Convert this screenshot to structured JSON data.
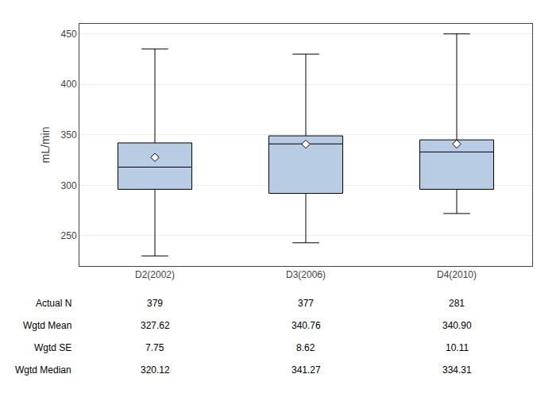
{
  "chart_data": {
    "type": "box",
    "categories": [
      "D2(2002)",
      "D3(2006)",
      "D4(2010)"
    ],
    "boxes": [
      {
        "whisker_low": 230,
        "q1": 296,
        "median": 318,
        "q3": 342,
        "whisker_high": 435,
        "mean": 327.62
      },
      {
        "whisker_low": 243,
        "q1": 292,
        "median": 341,
        "q3": 349,
        "whisker_high": 430,
        "mean": 340.76
      },
      {
        "whisker_low": 272,
        "q1": 296,
        "median": 333,
        "q3": 345,
        "whisker_high": 450,
        "mean": 340.9
      }
    ],
    "ylabel": "mL/min",
    "ylim": [
      220,
      460
    ],
    "yticks": [
      250,
      300,
      350,
      400,
      450
    ],
    "grid": true,
    "color": "#b8cce4",
    "marker": "diamond",
    "table_rows": [
      "Actual N",
      "Wgtd Mean",
      "Wgtd SE",
      "Wgtd Median"
    ],
    "table_data": [
      [
        "379",
        "377",
        "281"
      ],
      [
        "327.62",
        "340.76",
        "340.90"
      ],
      [
        "7.75",
        "8.62",
        "10.11"
      ],
      [
        "320.12",
        "341.27",
        "334.31"
      ]
    ]
  }
}
